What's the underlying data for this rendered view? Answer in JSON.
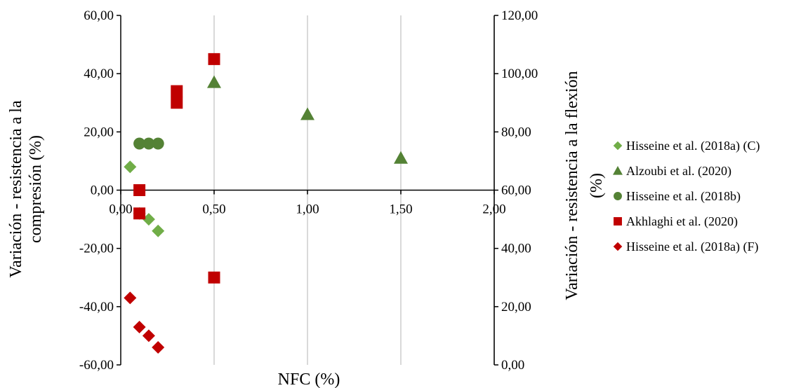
{
  "chart_data": {
    "type": "scatter",
    "xlabel": "NFC (%)",
    "ylabel_left": "Variación - resistencia a la compresión (%)",
    "ylabel_left_lines": [
      "Variación - resistencia a la",
      "compresión (%)"
    ],
    "ylabel_right": "Variación - resistencia a la flexión (%)",
    "ylabel_right_lines": [
      "Variación - resistencia a la flexión",
      "(%)"
    ],
    "xlim": [
      0,
      2
    ],
    "x_ticks": [
      "0,00",
      "0,50",
      "1,00",
      "1,50",
      "2,00"
    ],
    "y_left_lim": [
      -60,
      60
    ],
    "y_left_ticks": [
      "-60,00",
      "-40,00",
      "-20,00",
      "0,00",
      "20,00",
      "40,00",
      "60,00"
    ],
    "y_right_lim": [
      0,
      120
    ],
    "y_right_ticks": [
      "0,00",
      "20,00",
      "40,00",
      "60,00",
      "80,00",
      "100,00",
      "120,00"
    ],
    "grid": "vertical",
    "legend_position": "right",
    "series": [
      {
        "name": "Hisseine et al. (2018a) (C)",
        "marker": "diamond",
        "color": "#70ad47",
        "axis": "left",
        "points": [
          [
            0.05,
            8
          ],
          [
            0.1,
            -8
          ],
          [
            0.15,
            -10
          ],
          [
            0.2,
            -14
          ]
        ]
      },
      {
        "name": "Alzoubi et al. (2020)",
        "marker": "triangle",
        "color": "#548235",
        "axis": "left",
        "points": [
          [
            0.5,
            37
          ],
          [
            1.0,
            26
          ],
          [
            1.5,
            11
          ]
        ]
      },
      {
        "name": "Hisseine et al. (2018b)",
        "marker": "circle",
        "color": "#548235",
        "axis": "left",
        "points": [
          [
            0.1,
            16
          ],
          [
            0.15,
            16
          ],
          [
            0.2,
            16
          ]
        ]
      },
      {
        "name": "Akhlaghi et al. (2020)",
        "marker": "square",
        "color": "#c00000",
        "axis": "left",
        "points": [
          [
            0.1,
            0
          ],
          [
            0.1,
            -8
          ],
          [
            0.3,
            30
          ],
          [
            0.3,
            34
          ],
          [
            0.5,
            45
          ],
          [
            0.5,
            -30
          ]
        ]
      },
      {
        "name": "Hisseine et al. (2018a) (F)",
        "marker": "diamond",
        "color": "#c00000",
        "axis": "right",
        "points": [
          [
            0.05,
            23
          ],
          [
            0.1,
            13
          ],
          [
            0.15,
            10
          ],
          [
            0.2,
            6
          ]
        ]
      }
    ]
  }
}
